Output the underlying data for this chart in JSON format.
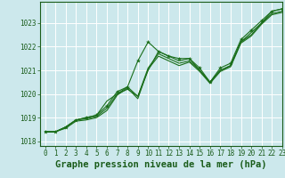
{
  "title": "",
  "xlabel": "Graphe pression niveau de la mer (hPa)",
  "ylabel": "",
  "bg_color": "#cce8ec",
  "plot_bg_color": "#cce8ec",
  "grid_color": "#ffffff",
  "line_color": "#1a6e1a",
  "marker_color": "#1a6e1a",
  "xlim": [
    -0.5,
    23
  ],
  "ylim": [
    1017.8,
    1023.9
  ],
  "yticks": [
    1018,
    1019,
    1020,
    1021,
    1022,
    1023
  ],
  "xticks": [
    0,
    1,
    2,
    3,
    4,
    5,
    6,
    7,
    8,
    9,
    10,
    11,
    12,
    13,
    14,
    15,
    16,
    17,
    18,
    19,
    20,
    21,
    22,
    23
  ],
  "series": [
    [
      1018.4,
      1018.4,
      1018.6,
      1018.9,
      1019.0,
      1019.1,
      1019.5,
      1020.1,
      1020.3,
      1021.4,
      1022.2,
      1021.8,
      1021.6,
      1021.5,
      1021.5,
      1021.1,
      1020.5,
      1021.1,
      1021.3,
      1022.3,
      1022.7,
      1023.1,
      1023.5,
      1023.6
    ],
    [
      1018.4,
      1018.4,
      1018.6,
      1018.9,
      1019.0,
      1019.1,
      1019.7,
      1020.0,
      1020.2,
      1019.9,
      1021.0,
      1021.8,
      1021.6,
      1021.4,
      1021.5,
      1021.0,
      1020.5,
      1021.0,
      1021.2,
      1022.2,
      1022.6,
      1023.0,
      1023.5,
      1023.6
    ],
    [
      1018.4,
      1018.4,
      1018.6,
      1018.9,
      1018.95,
      1019.05,
      1019.4,
      1020.0,
      1020.3,
      1019.9,
      1021.1,
      1021.7,
      1021.5,
      1021.3,
      1021.4,
      1021.0,
      1020.5,
      1021.0,
      1021.2,
      1022.2,
      1022.5,
      1023.0,
      1023.4,
      1023.5
    ],
    [
      1018.4,
      1018.4,
      1018.55,
      1018.85,
      1018.9,
      1019.0,
      1019.3,
      1019.95,
      1020.25,
      1019.8,
      1021.05,
      1021.6,
      1021.4,
      1021.2,
      1021.35,
      1020.95,
      1020.45,
      1020.95,
      1021.15,
      1022.15,
      1022.45,
      1022.95,
      1023.35,
      1023.45
    ]
  ],
  "font_color": "#1a5c1a",
  "tick_fontsize": 5.5,
  "xlabel_fontsize": 7.5
}
